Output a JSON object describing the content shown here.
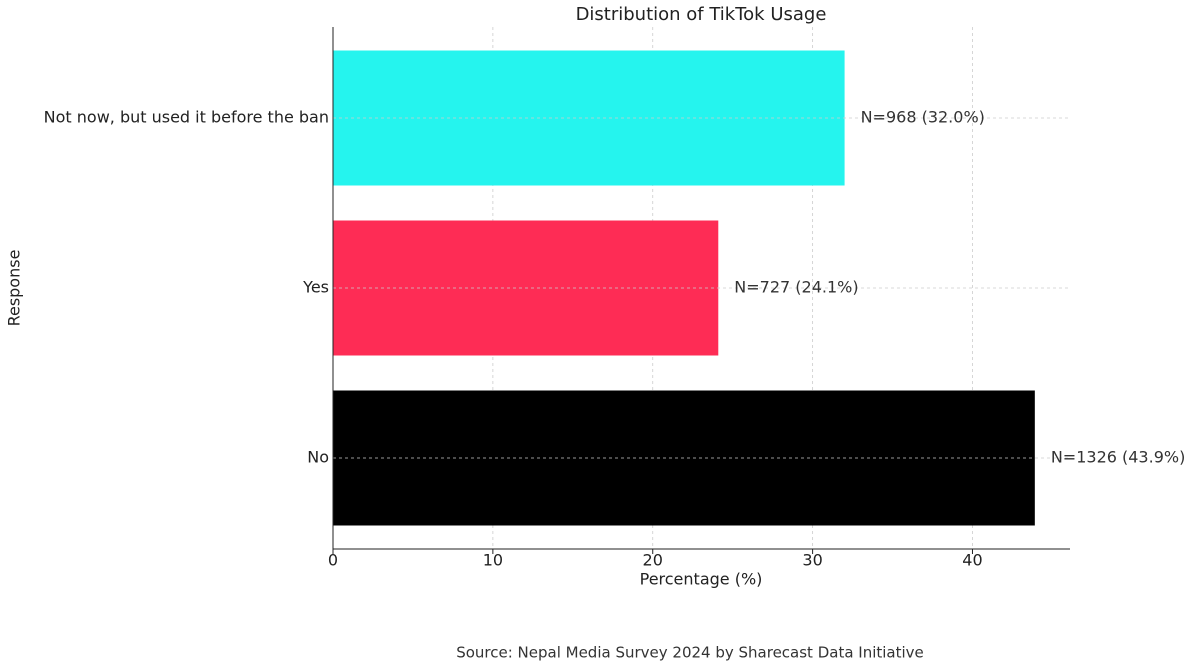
{
  "chart_data": {
    "type": "barh",
    "title": "Distribution of TikTok Usage",
    "categories": [
      "No",
      "Yes",
      "Not now, but used it before the ban"
    ],
    "values": [
      43.9,
      24.1,
      32.0
    ],
    "value_labels": [
      "N=1326 (43.9%)",
      "N=727 (24.1%)",
      "N=968 (32.0%)"
    ],
    "colors": [
      "#000000",
      "#fe2c55",
      "#25f4ee"
    ],
    "xlabel": "Percentage (%)",
    "ylabel": "Response",
    "xlim": [
      0,
      46.1
    ],
    "xticks": [
      0,
      10,
      20,
      30,
      40
    ],
    "grid": true,
    "source": "Source: Nepal Media Survey 2024 by Sharecast Data Initiative"
  }
}
